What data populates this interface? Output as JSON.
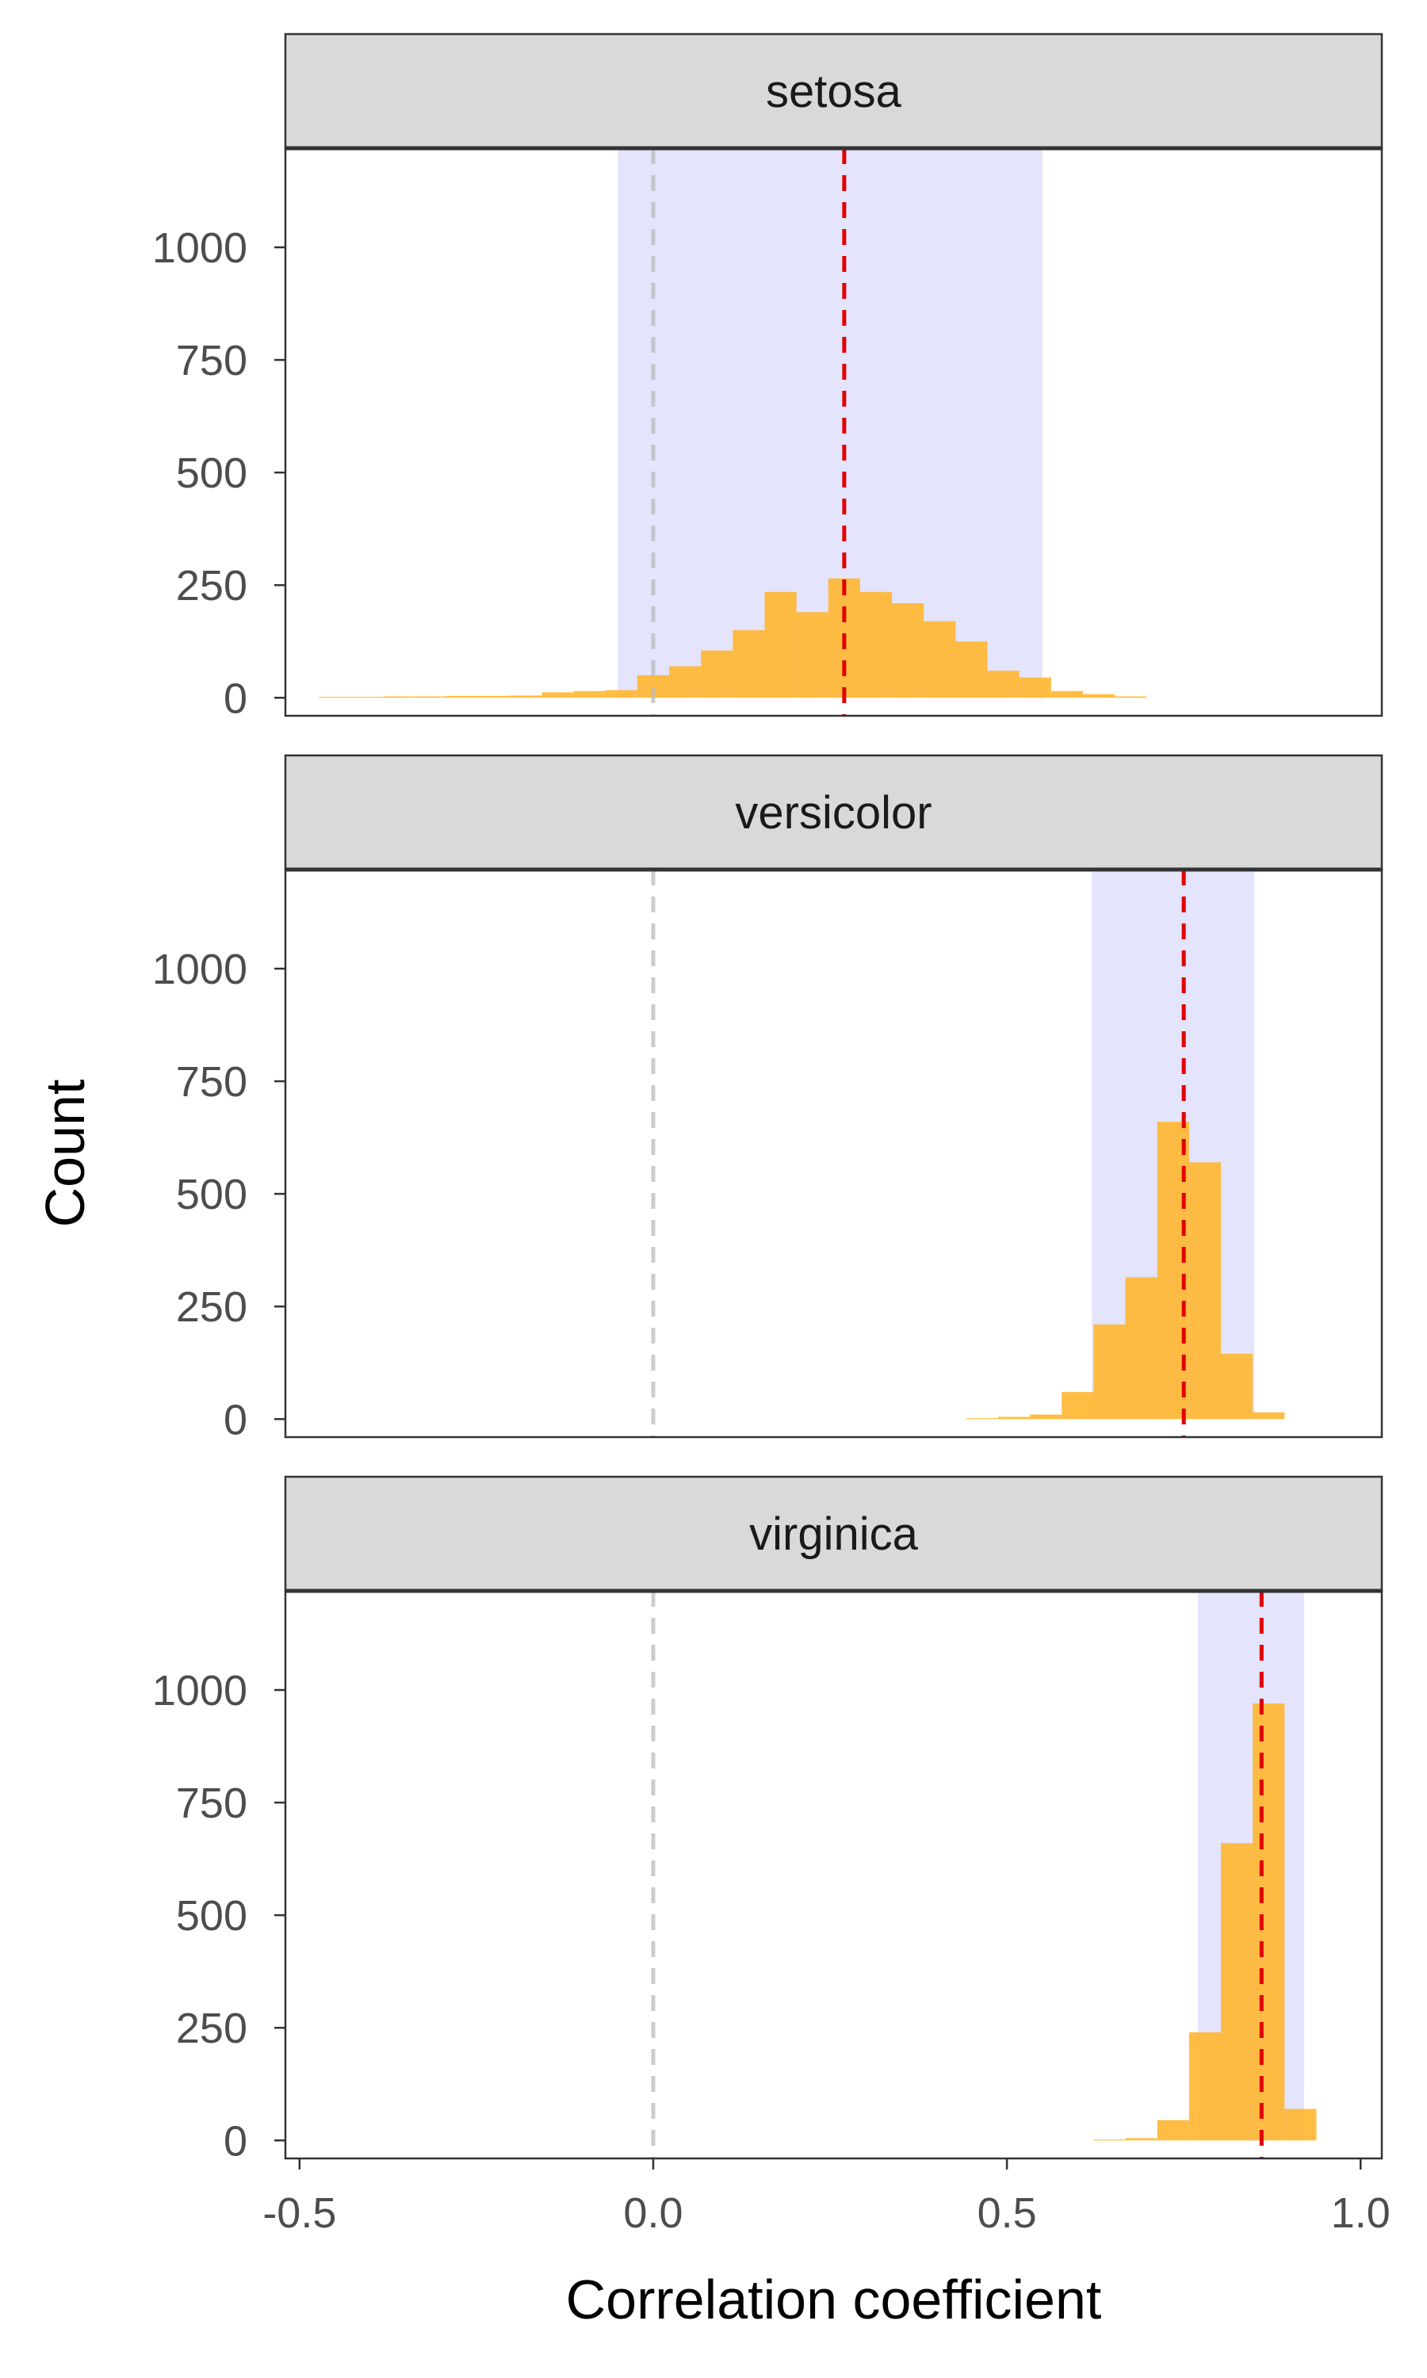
{
  "chart_data": {
    "type": "bar",
    "xlabel": "Correlation coefficient",
    "ylabel": "Count",
    "xlim": [
      -0.52,
      1.03
    ],
    "ylim": [
      -40,
      1220
    ],
    "x_ticks": [
      -0.5,
      0.0,
      0.5,
      1.0
    ],
    "x_tick_labels": [
      "-0.5",
      "0.0",
      "0.5",
      "1.0"
    ],
    "y_ticks": [
      0,
      250,
      500,
      750,
      1000
    ],
    "y_tick_labels": [
      "0",
      "250",
      "500",
      "750",
      "1000"
    ],
    "reference_line_x": 0.0,
    "grid": false,
    "colors": {
      "bar": "#FFB62F",
      "bar_opacity": 0.9,
      "interval": "#D9D9FC",
      "interval_opacity": 0.7,
      "mean_line": "#E00000",
      "reference_line": "#BBBBBB",
      "strip_fill": "#D9D9D9",
      "frame": "#333333"
    },
    "panels": [
      {
        "name": "setosa",
        "interval": [
          -0.05,
          0.55
        ],
        "mean": 0.27,
        "bin_width": 0.045,
        "bins": [
          {
            "x": -0.45,
            "count": 2
          },
          {
            "x": -0.405,
            "count": 2
          },
          {
            "x": -0.36,
            "count": 3
          },
          {
            "x": -0.315,
            "count": 3
          },
          {
            "x": -0.27,
            "count": 4
          },
          {
            "x": -0.225,
            "count": 4
          },
          {
            "x": -0.18,
            "count": 5
          },
          {
            "x": -0.135,
            "count": 12
          },
          {
            "x": -0.09,
            "count": 15
          },
          {
            "x": -0.045,
            "count": 17
          },
          {
            "x": 0.0,
            "count": 50
          },
          {
            "x": 0.045,
            "count": 70
          },
          {
            "x": 0.09,
            "count": 105
          },
          {
            "x": 0.135,
            "count": 150
          },
          {
            "x": 0.18,
            "count": 235
          },
          {
            "x": 0.225,
            "count": 190
          },
          {
            "x": 0.27,
            "count": 265
          },
          {
            "x": 0.315,
            "count": 235
          },
          {
            "x": 0.36,
            "count": 210
          },
          {
            "x": 0.405,
            "count": 170
          },
          {
            "x": 0.45,
            "count": 125
          },
          {
            "x": 0.495,
            "count": 60
          },
          {
            "x": 0.54,
            "count": 45
          },
          {
            "x": 0.585,
            "count": 15
          },
          {
            "x": 0.63,
            "count": 8
          },
          {
            "x": 0.675,
            "count": 3
          }
        ]
      },
      {
        "name": "versicolor",
        "interval": [
          0.62,
          0.85
        ],
        "mean": 0.75,
        "bin_width": 0.045,
        "bins": [
          {
            "x": 0.465,
            "count": 2
          },
          {
            "x": 0.51,
            "count": 5
          },
          {
            "x": 0.555,
            "count": 10
          },
          {
            "x": 0.6,
            "count": 60
          },
          {
            "x": 0.645,
            "count": 210
          },
          {
            "x": 0.69,
            "count": 315
          },
          {
            "x": 0.735,
            "count": 660
          },
          {
            "x": 0.78,
            "count": 570
          },
          {
            "x": 0.825,
            "count": 145
          },
          {
            "x": 0.87,
            "count": 15
          }
        ]
      },
      {
        "name": "virginica",
        "interval": [
          0.77,
          0.92
        ],
        "mean": 0.86,
        "bin_width": 0.045,
        "bins": [
          {
            "x": 0.645,
            "count": 2
          },
          {
            "x": 0.69,
            "count": 5
          },
          {
            "x": 0.735,
            "count": 45
          },
          {
            "x": 0.78,
            "count": 240
          },
          {
            "x": 0.825,
            "count": 660
          },
          {
            "x": 0.87,
            "count": 970
          },
          {
            "x": 0.915,
            "count": 70
          }
        ]
      }
    ]
  }
}
